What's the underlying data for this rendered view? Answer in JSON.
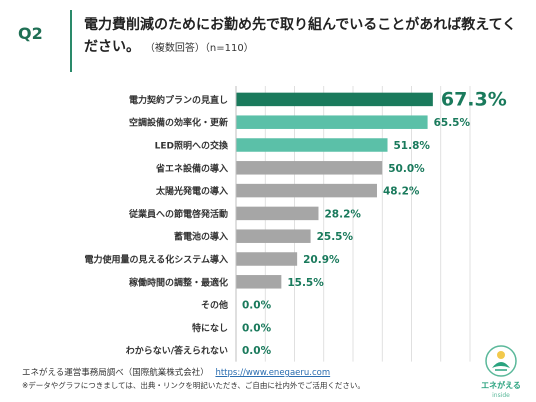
{
  "header": {
    "question_number": "Q2",
    "title": "電力費削減のためにお勤め先で取り組んでいることがあれば教えてください。",
    "note": "（複数回答）（n=110）"
  },
  "chart_data": {
    "type": "bar",
    "orientation": "horizontal",
    "title": "",
    "xlabel": "",
    "ylabel": "",
    "xlim": [
      0,
      80
    ],
    "grid": true,
    "categories": [
      "電力契約プランの見直し",
      "空調設備の効率化・更新",
      "LED照明への交換",
      "省エネ設備の導入",
      "太陽光発電の導入",
      "従業員への節電啓発活動",
      "蓄電池の導入",
      "電力使用量の見える化システム導入",
      "稼働時間の調整・最適化",
      "その他",
      "特になし",
      "わからない/答えられない"
    ],
    "values": [
      67.3,
      65.5,
      51.8,
      50.0,
      48.2,
      28.2,
      25.5,
      20.9,
      15.5,
      0.0,
      0.0,
      0.0
    ],
    "value_labels": [
      "67.3%",
      "65.5%",
      "51.8%",
      "50.0%",
      "48.2%",
      "28.2%",
      "25.5%",
      "20.9%",
      "15.5%",
      "0.0%",
      "0.0%",
      "0.0%"
    ],
    "bar_colors": [
      "#1a7a5c",
      "#5bc0a8",
      "#5bc0a8",
      "#a6a6a6",
      "#a6a6a6",
      "#a6a6a6",
      "#a6a6a6",
      "#a6a6a6",
      "#a6a6a6",
      "#a6a6a6",
      "#a6a6a6",
      "#a6a6a6"
    ],
    "label_colors": [
      "#1a7a5c",
      "#1a7a5c",
      "#1a7a5c",
      "#1a7a5c",
      "#1a7a5c",
      "#1a7a5c",
      "#1a7a5c",
      "#1a7a5c",
      "#1a7a5c",
      "#1a7a5c",
      "#1a7a5c",
      "#1a7a5c"
    ]
  },
  "footer": {
    "source": "エネがえる運営事務局調べ（国際航業株式会社）",
    "url": "https://www.enegaeru.com",
    "note": "※データやグラフにつきましては、出典・リンクを明記いただき、ご自由に社内外でご活用ください。"
  },
  "logo": {
    "name": "エネがえる",
    "sub": "inside"
  },
  "colors": {
    "accent": "#1a7a5c",
    "highlight": "#5bc0a8",
    "neutral": "#a6a6a6",
    "link": "#2a6db0"
  },
  "icons": {
    "logo": "leaf-sun-icon"
  }
}
